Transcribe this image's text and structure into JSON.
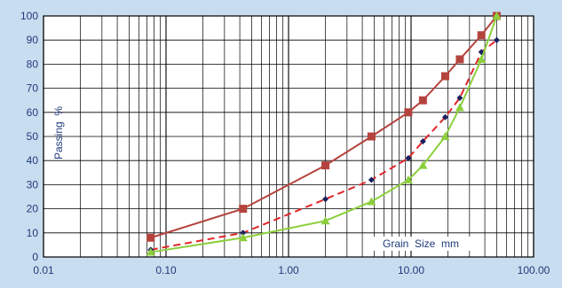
{
  "colors": {
    "background": "#c9ddf0",
    "plot_area": "#ffffff",
    "grid": "#000000",
    "label": "#1f3a7a",
    "upper_envelope": "#b5433d",
    "middle_gradation": "#e0262a",
    "middle_marker": "#1a2060",
    "lower_envelope": "#8ccf3c"
  },
  "chart_data": {
    "type": "line",
    "title": "",
    "xlabel": "Grain  Size  mm",
    "ylabel": "Passing  %",
    "x_scale": "log",
    "xlim": [
      0.01,
      100
    ],
    "ylim": [
      0,
      100
    ],
    "x_tick_labels": [
      {
        "value": 0.01,
        "label": "0.01"
      },
      {
        "value": 0.1,
        "label": "0.10"
      },
      {
        "value": 1,
        "label": "1.00"
      },
      {
        "value": 10,
        "label": "10.00"
      },
      {
        "value": 100,
        "label": "100.00"
      }
    ],
    "y_ticks": [
      0,
      10,
      20,
      30,
      40,
      50,
      60,
      70,
      80,
      90,
      100
    ],
    "grid": true,
    "legend": "none",
    "series": [
      {
        "style": "solid",
        "marker": "square",
        "color": "#b5433d",
        "x": [
          0.075,
          0.425,
          2.0,
          4.75,
          9.5,
          12.5,
          19.0,
          25.0,
          37.5,
          50.0
        ],
        "y": [
          8,
          20,
          38,
          50,
          60,
          65,
          75,
          82,
          92,
          100
        ]
      },
      {
        "style": "dashed",
        "marker": "diamond",
        "color": "#e0262a",
        "x": [
          0.075,
          0.425,
          2.0,
          4.75,
          9.5,
          12.5,
          19.0,
          25.0,
          37.5,
          50.0
        ],
        "y": [
          3,
          10,
          24,
          32,
          41,
          48,
          58,
          66,
          85,
          90
        ]
      },
      {
        "style": "solid",
        "marker": "triangle",
        "color": "#8ccf3c",
        "x": [
          0.075,
          0.425,
          2.0,
          4.75,
          9.5,
          12.5,
          19.0,
          25.0,
          37.5,
          50.0
        ],
        "y": [
          2,
          8,
          15,
          23,
          32,
          38,
          50,
          62,
          82,
          100
        ]
      }
    ]
  }
}
